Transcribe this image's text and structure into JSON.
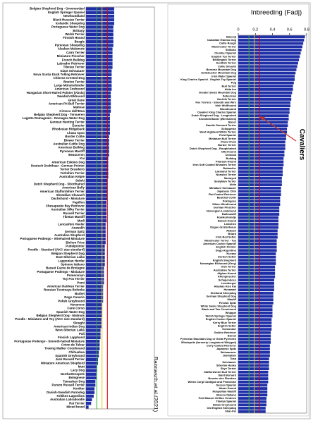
{
  "chart_data": [
    {
      "type": "bar",
      "orientation": "horizontal",
      "color": "#1f2fa8",
      "xlim": [
        0,
        0.8
      ],
      "source": "Bannasch et al (2021)",
      "reference_lines": [
        {
          "value": 0.125,
          "color": "#2bb32b"
        },
        {
          "value": 0.1875,
          "color": "#e6c800"
        },
        {
          "value": 0.25,
          "color": "#e00000"
        }
      ],
      "categories": [
        "Belgian Shepherd Dog - Groenendael",
        "English Springer Spaniel",
        "Newfoundland",
        "Black Russian Terrier",
        "Icelandic Sheepdog",
        "Portuguese Water Dog",
        "Brittany",
        "Welsh Terrier",
        "Finnish Hound",
        "Beagle",
        "Pyrenean Sheepdog",
        "Alaskan Malamute",
        "Cairn Terrier",
        "Miniature Pinscher",
        "French Bulldog",
        "Labrador Retriever",
        "Tibetan Terrier",
        "Giant Schnauzer",
        "Nova Scotia Duck Tolling Retriever",
        "Chinese Crested Dog",
        "Boston Terrier",
        "Large Münsterländer",
        "American Foxhound",
        "Hungarian Short-Haired Pointer (Vizsla)",
        "Swedish Elkhound",
        "Great Dane",
        "American Pit Bull Terrier",
        "Maltese",
        "Cirneco dell'Etna",
        "Belgian Shepherd Dog - Tervueren",
        "Lagotto Romagnolo - Romagna Water Dog",
        "German Hunting Terrier",
        "Eurasier",
        "Rhodesian Ridgeback",
        "Lhasa Apso",
        "Border Collie",
        "Biewer Terrier",
        "Australian Cattle Dog",
        "American Bulldog",
        "Pyrenean Mastiff",
        "Beauceron",
        "Kai",
        "American Eskimo Dog",
        "Deutsch Drahthaar - German Pointer",
        "Terrier Brasileiro",
        "Yorkshire Terrier",
        "Australian Kelpie",
        "Saluki",
        "Dutch Shepherd Dog - Shorthaired",
        "American Bully",
        "American Staffordshire Terrier",
        "Slovakian Chuvach",
        "Dachshund - Miniature",
        "Papillon",
        "Chesapeake Bay Retriever",
        "Australian Silky Terrier",
        "Russell Terrier",
        "Tibetan Mastiff",
        "Mudi",
        "Lancashire Heeler",
        "Azawakh",
        "German Spitz",
        "Australian Shepherd",
        "Portuguese Podengo - Wirehaired Miniature",
        "Bichon Frise",
        "Pudelpointer",
        "Poodle - Standard (AKC size standard)",
        "Belgian Shepherd Dog",
        "East-Siberian Laika",
        "Lapponian Herder",
        "Spinone Italiano",
        "Basset Fauve de Bretagne",
        "Portuguese Podengo - Miniature",
        "Pomeranian",
        "Toy Fox Terrier",
        "Pumi",
        "American Hairless Terrier",
        "Russian Tsvetnaya Bolonka",
        "Barbet",
        "Dogo Canario",
        "Polish Greyhound",
        "Havanese",
        "Cane Corso",
        "Spanish Water Dog",
        "Belgian Shepherd Dog - Malinois",
        "Poodle - Miniature and Toy (AKC size standard)",
        "Sloughi",
        "American Indian Dog",
        "West-Siberian Laika",
        "Puli",
        "Finnish Lapphund",
        "Portuguese Podengo - Smooth-haired Miniature",
        "Coton de Tulear",
        "Treeing Walker Coonhound",
        "Chihuahua",
        "Spanish Greyhound",
        "Jack Russell Terrier",
        "Miniature American Shepherd",
        "Mutt",
        "Lacy Dog",
        "Norrbottenspets",
        "Bolognese",
        "Tamaskan Dog",
        "Parson Russell Terrier",
        "Kooiker",
        "Danish-Swedish Farmdog",
        "Kritikos Lagonikos",
        "Australian Labradoodle",
        "Rat Terrier",
        "Mixed breed"
      ],
      "values": [
        0.33,
        0.33,
        0.33,
        0.33,
        0.33,
        0.32,
        0.32,
        0.32,
        0.32,
        0.32,
        0.32,
        0.31,
        0.31,
        0.31,
        0.31,
        0.31,
        0.31,
        0.3,
        0.3,
        0.3,
        0.3,
        0.3,
        0.3,
        0.29,
        0.29,
        0.29,
        0.29,
        0.29,
        0.29,
        0.28,
        0.28,
        0.28,
        0.28,
        0.28,
        0.28,
        0.27,
        0.27,
        0.27,
        0.27,
        0.27,
        0.27,
        0.26,
        0.26,
        0.26,
        0.26,
        0.26,
        0.26,
        0.25,
        0.25,
        0.25,
        0.25,
        0.25,
        0.25,
        0.24,
        0.24,
        0.24,
        0.24,
        0.24,
        0.24,
        0.23,
        0.23,
        0.23,
        0.23,
        0.23,
        0.23,
        0.22,
        0.22,
        0.22,
        0.22,
        0.22,
        0.22,
        0.21,
        0.21,
        0.21,
        0.21,
        0.21,
        0.2,
        0.2,
        0.2,
        0.2,
        0.2,
        0.19,
        0.19,
        0.19,
        0.19,
        0.18,
        0.18,
        0.18,
        0.17,
        0.17,
        0.17,
        0.16,
        0.16,
        0.16,
        0.15,
        0.15,
        0.14,
        0.14,
        0.13,
        0.13,
        0.12,
        0.12,
        0.11,
        0.11,
        0.1,
        0.1,
        0.09,
        0.07,
        0.06,
        0.03
      ]
    },
    {
      "type": "bar",
      "orientation": "horizontal",
      "color": "#1f2fa8",
      "xlim": [
        0,
        0.8
      ],
      "title": "Inbreeding (Fadj)",
      "xticks": [
        0,
        0.2,
        0.4,
        0.6,
        0.8
      ],
      "annotation": "Cavaliers",
      "reference_lines": [
        {
          "value": 0.125,
          "color": "#2bb32b"
        },
        {
          "value": 0.1875,
          "color": "#e6c800"
        },
        {
          "value": 0.25,
          "color": "#e00000"
        }
      ],
      "categories": [
        "Basenji",
        "Canadian Eskimo Dog",
        "Collie Rough",
        "Manchester Terrier",
        "Shikoku",
        "Clumber Spaniel",
        "English Toy Terrier",
        "Bedlington Terrier",
        "Scottish Terrier",
        "Collie Smooth",
        "Bernese Mountain Dog",
        "Entlebucher Mountain Dog",
        "Irish Water Spaniel",
        "King Charles Spaniel - English Toy Spaniel",
        "Pug",
        "Bull Terrier",
        "Akita Inu",
        "Greater Swiss Mountain Dog",
        "Doberman",
        "Norfolk Terrier",
        "Fox Terriers - Smooth and Wire",
        "Irish Wolfhound",
        "Bloodhound",
        "Cavalier King Charles Spaniel",
        "Dutch Shepherd Dog - Longhaired",
        "Kromfohrländer (Wirehaired)",
        "Boxer",
        "Dandie Dinmont Terrier",
        "Schipperke",
        "West Highland White Terrier",
        "Field Spaniel",
        "Miniature Bull Terrier",
        "Chow Chow",
        "Border Terrier",
        "Dutch Shepherd Dog - Roughhaired",
        "Otterhound",
        "Chinook",
        "Bulldog",
        "Pharaoh Hound",
        "Irish Soft Coated Wheaten Terrier",
        "Rottweiler",
        "Lakeland Terrier",
        "Norwich Terrier",
        "Samoyed",
        "Sealyham Terrier",
        "Akita",
        "Miniature Schnauzer",
        "Japanese Chin",
        "Flat Coated Retriever",
        "Bearded Collie",
        "Pekingese",
        "Silken Windhound",
        "German Pinscher",
        "Norwegian Lundehund",
        "Bullmastiff",
        "Kooikerhondje",
        "Basset Hound",
        "Löwchen",
        "Dogue de Bordeaux",
        "Akbash",
        "Briard",
        "Irish Red Setter",
        "Manchester Terrier - Toy",
        "American Cocker Spaniel",
        "English Pointer",
        "Dogo Argentino",
        "Kuvasz",
        "Gordon Setter",
        "English Shepherd",
        "Norwegian Elkhound (Grey)",
        "Irish Terrier",
        "Australian Terrier",
        "Afghan Hound",
        "Affenpinscher",
        "Schapendoes",
        "Leonberger",
        "Alaskan Klee Kai",
        "Hovawart",
        "Shetland Sheepdog",
        "German Shepherd Dog",
        "Mastiff",
        "Finnish Spitz",
        "White Swiss Shepherd Dog",
        "Black and Tan Coonhound",
        "Whippet",
        "Welsh Springer Spaniel",
        "English Cocker Spaniel",
        "Kerry Blue Terrier",
        "English Setter",
        "Komondor",
        "Golden Retriever",
        "Borzoi",
        "Pyrenean Mountain Dog or Great Pyrenees",
        "Windsprite (formerly Longhaired Whippet)",
        "Curly Coated Retriever",
        "Japanese Spitz",
        "Weimaraner",
        "Dalmatian",
        "Tosa",
        "Schnauzer",
        "Siberian Husky",
        "Skye Terrier",
        "Staffordshire Bull Terrier",
        "Saint Bernard",
        "Bouvier des Flandres",
        "Welsh Corgi Cardigan and Pembroke",
        "Sussex Spaniel",
        "Ibizan Hound",
        "Neapolitan Mastiff",
        "Bracco Italiano",
        "Petit Basset Griffon Vendeen",
        "Tibetan Spaniel",
        "Italian Greyhound",
        "Old English Sheepdog",
        "Shar-Pei"
      ],
      "values": [
        0.78,
        0.77,
        0.76,
        0.75,
        0.74,
        0.73,
        0.72,
        0.71,
        0.7,
        0.69,
        0.68,
        0.67,
        0.66,
        0.66,
        0.65,
        0.64,
        0.64,
        0.63,
        0.62,
        0.62,
        0.61,
        0.61,
        0.6,
        0.6,
        0.59,
        0.59,
        0.58,
        0.58,
        0.57,
        0.57,
        0.56,
        0.56,
        0.55,
        0.55,
        0.55,
        0.54,
        0.54,
        0.53,
        0.53,
        0.53,
        0.52,
        0.52,
        0.52,
        0.51,
        0.51,
        0.51,
        0.5,
        0.5,
        0.5,
        0.49,
        0.49,
        0.49,
        0.48,
        0.48,
        0.48,
        0.47,
        0.47,
        0.47,
        0.47,
        0.46,
        0.46,
        0.46,
        0.45,
        0.45,
        0.45,
        0.45,
        0.44,
        0.44,
        0.44,
        0.44,
        0.43,
        0.43,
        0.43,
        0.43,
        0.42,
        0.42,
        0.42,
        0.42,
        0.41,
        0.41,
        0.41,
        0.41,
        0.4,
        0.4,
        0.4,
        0.4,
        0.39,
        0.39,
        0.39,
        0.39,
        0.38,
        0.38,
        0.38,
        0.38,
        0.37,
        0.37,
        0.37,
        0.37,
        0.36,
        0.36,
        0.36,
        0.36,
        0.35,
        0.35,
        0.35,
        0.35,
        0.34,
        0.34,
        0.34,
        0.34,
        0.33,
        0.33,
        0.33,
        0.32,
        0.32
      ]
    }
  ]
}
